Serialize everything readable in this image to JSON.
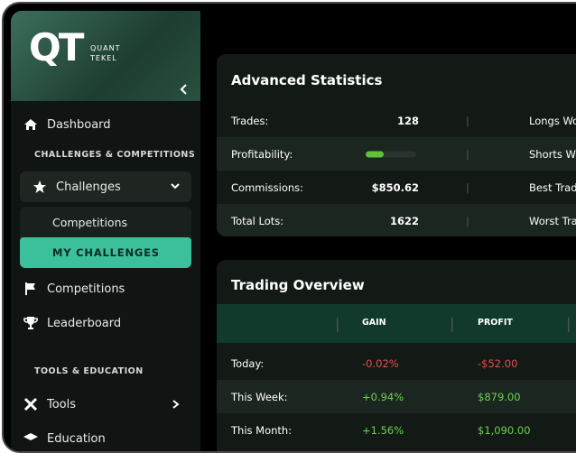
{
  "sidebar": {
    "brand": {
      "logo": "QT",
      "line1": "QUANT",
      "line2": "TEKEL"
    },
    "dashboard": "Dashboard",
    "section1": "CHALLENGES & COMPETITIONS",
    "challenges": "Challenges",
    "submenu": [
      "Competitions",
      "MY CHALLENGES"
    ],
    "competitions": "Competitions",
    "leaderboard": "Leaderboard",
    "section2": "TOOLS & EDUCATION",
    "tools": "Tools",
    "education": "Education"
  },
  "advanced_statistics": {
    "title": "Advanced Statistics",
    "rows": [
      {
        "label": "Trades:",
        "value": "128",
        "right": "Longs Won"
      },
      {
        "label": "Profitability:",
        "value": null,
        "right": "Shorts Won"
      },
      {
        "label": "Commissions:",
        "value": "$850.62",
        "right": "Best Trade"
      },
      {
        "label": "Total Lots:",
        "value": "1622",
        "right": "Worst Trade"
      }
    ]
  },
  "trading_overview": {
    "title": "Trading Overview",
    "columns": [
      "GAIN",
      "PROFIT"
    ],
    "rows": [
      {
        "label": "Today:",
        "gain": "-0.02%",
        "profit": "-$52.00"
      },
      {
        "label": "This Week:",
        "gain": "+0.94%",
        "profit": "$879.00"
      },
      {
        "label": "This Month:",
        "gain": "+1.56%",
        "profit": "$1,090.00"
      }
    ]
  }
}
